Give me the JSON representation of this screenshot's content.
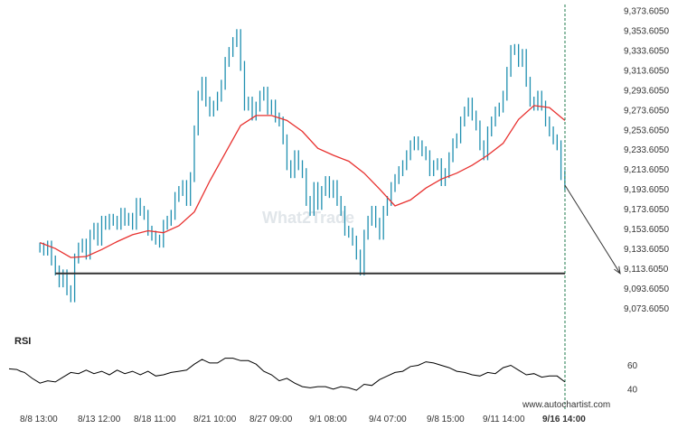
{
  "chart_data": [
    {
      "type": "candlestick",
      "y_ticks": [
        "9,373.6050",
        "9,353.6050",
        "9,333.6050",
        "9,313.6050",
        "9,293.6050",
        "9,273.6050",
        "9,253.6050",
        "9,233.6050",
        "9,213.6050",
        "9,193.6050",
        "9,173.6050",
        "9,153.6050",
        "9,133.6050",
        "9,113.6050",
        "9,093.6050",
        "9,073.6050"
      ],
      "ylim": [
        9066,
        9378
      ],
      "x_ticks": [
        "8/8 13:00",
        "8/13 12:00",
        "8/18 11:00",
        "8/21 10:00",
        "8/27 09:00",
        "9/1 08:00",
        "9/4 07:00",
        "9/8 15:00",
        "9/11 14:00",
        "9/16 14:00"
      ],
      "x_ticks_bold_index": 9,
      "support_level": 9109,
      "forecast_target": 9109,
      "series": [
        {
          "kind": "bars",
          "color": "#1f8fb0",
          "values": [
            [
              8,
              9135
            ],
            [
              9,
              9132
            ],
            [
              10,
              9137
            ],
            [
              11,
              9122
            ],
            [
              12,
              9112
            ],
            [
              13,
              9100
            ],
            [
              14,
              9108
            ],
            [
              15,
              9092
            ],
            [
              16,
              9085
            ],
            [
              17,
              9124
            ],
            [
              18,
              9135
            ],
            [
              19,
              9139
            ],
            [
              20,
              9128
            ],
            [
              21,
              9148
            ],
            [
              22,
              9155
            ],
            [
              23,
              9142
            ],
            [
              24,
              9162
            ],
            [
              25,
              9158
            ],
            [
              26,
              9164
            ],
            [
              27,
              9162
            ],
            [
              28,
              9158
            ],
            [
              29,
              9170
            ],
            [
              30,
              9162
            ],
            [
              31,
              9165
            ],
            [
              32,
              9158
            ],
            [
              33,
              9180
            ],
            [
              34,
              9172
            ],
            [
              35,
              9168
            ],
            [
              36,
              9152
            ],
            [
              37,
              9147
            ],
            [
              38,
              9143
            ],
            [
              39,
              9140
            ],
            [
              40,
              9158
            ],
            [
              41,
              9162
            ],
            [
              42,
              9168
            ],
            [
              43,
              9186
            ],
            [
              44,
              9192
            ],
            [
              45,
              9198
            ],
            [
              46,
              9182
            ],
            [
              47,
              9206
            ],
            [
              48,
              9253
            ],
            [
              49,
              9288
            ],
            [
              50,
              9302
            ],
            [
              51,
              9282
            ],
            [
              52,
              9272
            ],
            [
              53,
              9278
            ],
            [
              54,
              9287
            ],
            [
              55,
              9299
            ],
            [
              56,
              9322
            ],
            [
              57,
              9332
            ],
            [
              58,
              9342
            ],
            [
              59,
              9350
            ],
            [
              60,
              9318
            ],
            [
              61,
              9278
            ],
            [
              62,
              9282
            ],
            [
              63,
              9268
            ],
            [
              64,
              9277
            ],
            [
              65,
              9288
            ],
            [
              66,
              9292
            ],
            [
              67,
              9274
            ],
            [
              68,
              9279
            ],
            [
              69,
              9266
            ],
            [
              70,
              9262
            ],
            [
              71,
              9244
            ],
            [
              72,
              9218
            ],
            [
              73,
              9210
            ],
            [
              74,
              9228
            ],
            [
              75,
              9218
            ],
            [
              76,
              9210
            ],
            [
              77,
              9182
            ],
            [
              78,
              9172
            ],
            [
              79,
              9196
            ],
            [
              80,
              9178
            ],
            [
              81,
              9192
            ],
            [
              82,
              9202
            ],
            [
              83,
              9190
            ],
            [
              84,
              9198
            ],
            [
              85,
              9182
            ],
            [
              86,
              9172
            ],
            [
              87,
              9152
            ],
            [
              88,
              9150
            ],
            [
              89,
              9142
            ],
            [
              90,
              9128
            ],
            [
              91,
              9112
            ],
            [
              92,
              9148
            ],
            [
              93,
              9162
            ],
            [
              94,
              9172
            ],
            [
              95,
              9160
            ],
            [
              96,
              9148
            ],
            [
              97,
              9172
            ],
            [
              98,
              9182
            ],
            [
              99,
              9196
            ],
            [
              100,
              9204
            ],
            [
              101,
              9212
            ],
            [
              102,
              9218
            ],
            [
              103,
              9228
            ],
            [
              104,
              9238
            ],
            [
              105,
              9242
            ],
            [
              106,
              9238
            ],
            [
              107,
              9232
            ],
            [
              108,
              9228
            ],
            [
              109,
              9212
            ],
            [
              110,
              9218
            ],
            [
              111,
              9220
            ],
            [
              112,
              9202
            ],
            [
              113,
              9210
            ],
            [
              114,
              9226
            ],
            [
              115,
              9240
            ],
            [
              116,
              9245
            ],
            [
              117,
              9262
            ],
            [
              118,
              9272
            ],
            [
              119,
              9281
            ],
            [
              120,
              9268
            ],
            [
              121,
              9258
            ],
            [
              122,
              9238
            ],
            [
              123,
              9228
            ],
            [
              124,
              9252
            ],
            [
              125,
              9262
            ],
            [
              126,
              9272
            ],
            [
              127,
              9276
            ],
            [
              128,
              9288
            ],
            [
              129,
              9312
            ],
            [
              130,
              9334
            ],
            [
              131,
              9335
            ],
            [
              132,
              9322
            ],
            [
              133,
              9330
            ],
            [
              134,
              9302
            ],
            [
              135,
              9282
            ],
            [
              136,
              9278
            ],
            [
              137,
              9288
            ],
            [
              138,
              9278
            ],
            [
              139,
              9262
            ],
            [
              140,
              9252
            ],
            [
              141,
              9244
            ],
            [
              142,
              9238
            ],
            [
              143,
              9208
            ],
            [
              144,
              9198
            ]
          ]
        },
        {
          "kind": "line",
          "name": "moving average",
          "color": "#e8312f",
          "values": [
            [
              8,
              9140
            ],
            [
              12,
              9134
            ],
            [
              16,
              9125
            ],
            [
              20,
              9126
            ],
            [
              24,
              9133
            ],
            [
              28,
              9141
            ],
            [
              32,
              9148
            ],
            [
              36,
              9152
            ],
            [
              40,
              9150
            ],
            [
              44,
              9157
            ],
            [
              48,
              9171
            ],
            [
              52,
              9202
            ],
            [
              56,
              9230
            ],
            [
              60,
              9258
            ],
            [
              64,
              9268
            ],
            [
              68,
              9268
            ],
            [
              72,
              9263
            ],
            [
              76,
              9252
            ],
            [
              80,
              9235
            ],
            [
              84,
              9228
            ],
            [
              88,
              9222
            ],
            [
              92,
              9210
            ],
            [
              96,
              9194
            ],
            [
              100,
              9177
            ],
            [
              104,
              9183
            ],
            [
              108,
              9195
            ],
            [
              112,
              9204
            ],
            [
              116,
              9210
            ],
            [
              120,
              9218
            ],
            [
              124,
              9228
            ],
            [
              128,
              9240
            ],
            [
              132,
              9264
            ],
            [
              136,
              9278
            ],
            [
              140,
              9276
            ],
            [
              144,
              9263
            ]
          ]
        }
      ]
    },
    {
      "type": "line",
      "title": "RSI",
      "y_ticks": [
        "60",
        "40"
      ],
      "ylim": [
        36,
        68
      ],
      "values": [
        [
          0,
          57
        ],
        [
          2,
          56.5
        ],
        [
          3,
          55
        ],
        [
          4,
          54
        ],
        [
          6,
          49
        ],
        [
          8,
          45
        ],
        [
          10,
          47
        ],
        [
          12,
          46
        ],
        [
          14,
          50
        ],
        [
          16,
          54
        ],
        [
          18,
          53
        ],
        [
          20,
          56
        ],
        [
          22,
          53
        ],
        [
          24,
          55
        ],
        [
          26,
          52
        ],
        [
          28,
          56
        ],
        [
          30,
          53
        ],
        [
          32,
          55
        ],
        [
          34,
          52
        ],
        [
          36,
          55
        ],
        [
          38,
          51
        ],
        [
          40,
          52
        ],
        [
          42,
          54
        ],
        [
          44,
          55
        ],
        [
          46,
          56
        ],
        [
          48,
          61
        ],
        [
          50,
          65
        ],
        [
          52,
          62
        ],
        [
          54,
          62
        ],
        [
          56,
          66
        ],
        [
          58,
          66
        ],
        [
          60,
          64
        ],
        [
          62,
          64
        ],
        [
          64,
          61
        ],
        [
          66,
          55
        ],
        [
          68,
          52
        ],
        [
          70,
          47
        ],
        [
          72,
          49
        ],
        [
          74,
          45
        ],
        [
          76,
          42
        ],
        [
          78,
          41
        ],
        [
          80,
          42
        ],
        [
          82,
          42
        ],
        [
          84,
          40
        ],
        [
          86,
          42
        ],
        [
          88,
          41
        ],
        [
          90,
          39
        ],
        [
          92,
          44
        ],
        [
          94,
          43
        ],
        [
          96,
          48
        ],
        [
          98,
          51
        ],
        [
          100,
          54
        ],
        [
          102,
          55
        ],
        [
          104,
          59
        ],
        [
          106,
          60
        ],
        [
          108,
          63
        ],
        [
          110,
          62
        ],
        [
          112,
          60
        ],
        [
          114,
          58
        ],
        [
          116,
          55
        ],
        [
          118,
          54
        ],
        [
          120,
          52
        ],
        [
          122,
          51
        ],
        [
          124,
          54
        ],
        [
          126,
          53
        ],
        [
          128,
          58
        ],
        [
          130,
          60
        ],
        [
          132,
          56
        ],
        [
          134,
          52
        ],
        [
          136,
          53
        ],
        [
          138,
          50
        ],
        [
          140,
          51
        ],
        [
          142,
          51
        ],
        [
          144,
          46
        ]
      ]
    }
  ],
  "watermark": "What2Trade",
  "credit": "www.autochartist.com"
}
